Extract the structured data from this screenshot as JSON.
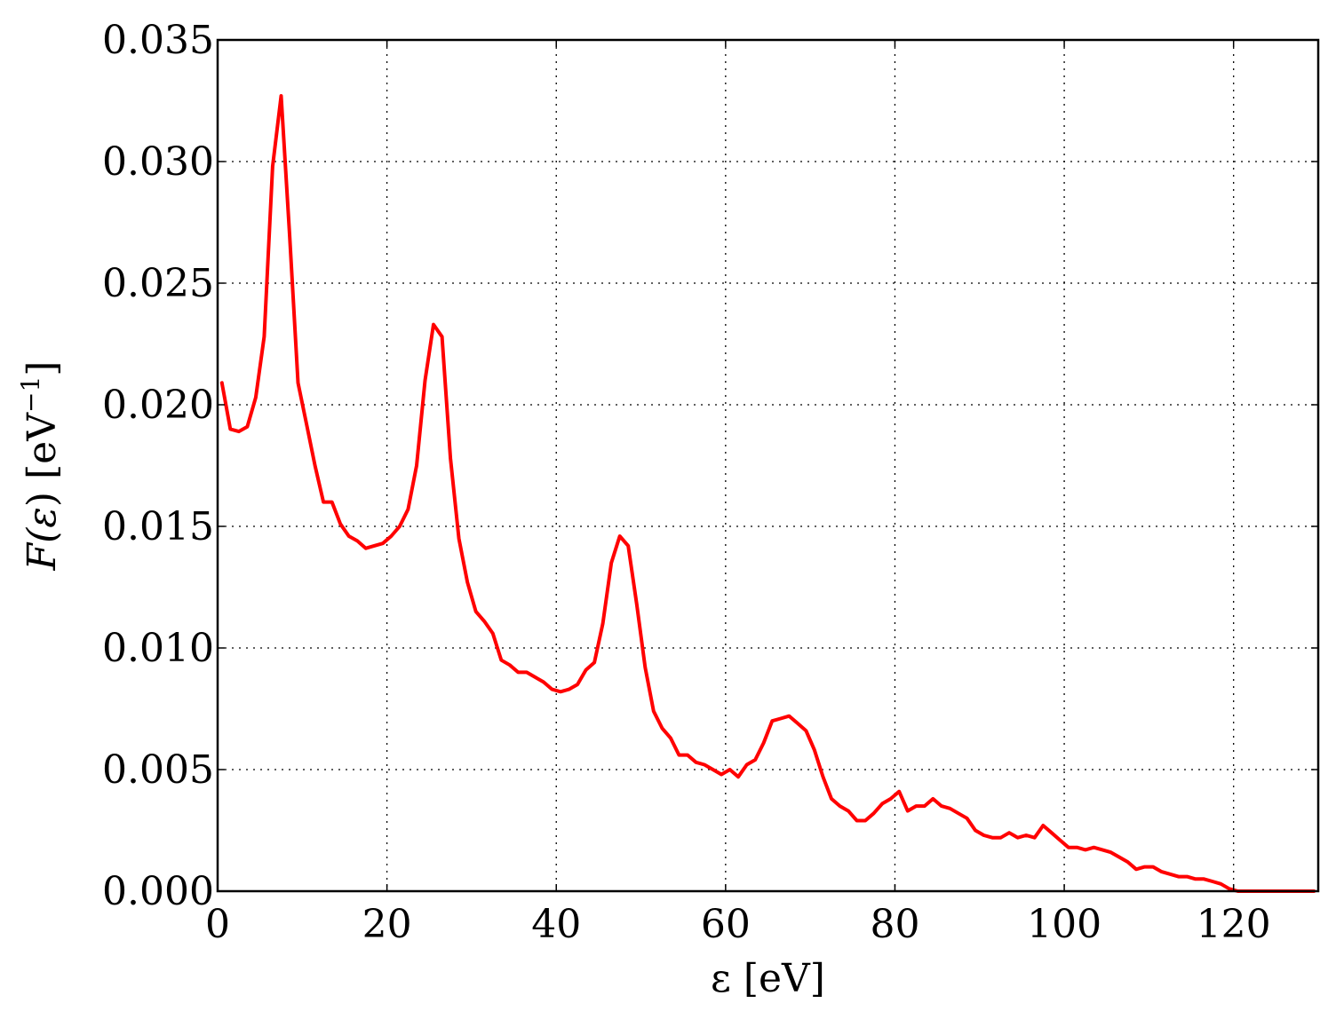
{
  "chart_data": {
    "type": "line",
    "xlabel": "ε [eV]",
    "ylabel_parts": {
      "prefix": "F(",
      "symbol": "ε",
      "suffix": ") [eV",
      "sup": "−1",
      "end": "]"
    },
    "xlim": [
      0,
      130
    ],
    "ylim": [
      0,
      0.035
    ],
    "xticks": [
      0,
      20,
      40,
      60,
      80,
      100,
      120
    ],
    "xtick_labels": [
      "0",
      "20",
      "40",
      "60",
      "80",
      "100",
      "120"
    ],
    "yticks": [
      0,
      0.005,
      0.01,
      0.015,
      0.02,
      0.025,
      0.03,
      0.035
    ],
    "ytick_labels": [
      "0.000",
      "0.005",
      "0.010",
      "0.015",
      "0.020",
      "0.025",
      "0.030",
      "0.035"
    ],
    "grid": true,
    "color": "#ff0000",
    "series": [
      {
        "x": [
          0.5,
          1.5,
          2.5,
          3.5,
          4.5,
          5.5,
          6.5,
          7.5,
          8.5,
          9.5,
          10.5,
          11.5,
          12.5,
          13.5,
          14.5,
          15.5,
          16.5,
          17.5,
          18.5,
          19.5,
          20.5,
          21.5,
          22.5,
          23.5,
          24.5,
          25.5,
          26.5,
          27.5,
          28.5,
          29.5,
          30.5,
          31.5,
          32.5,
          33.5,
          34.5,
          35.5,
          36.5,
          37.5,
          38.5,
          39.5,
          40.5,
          41.5,
          42.5,
          43.5,
          44.5,
          45.5,
          46.5,
          47.5,
          48.5,
          49.5,
          50.5,
          51.5,
          52.5,
          53.5,
          54.5,
          55.5,
          56.5,
          57.5,
          58.5,
          59.5,
          60.5,
          61.5,
          62.5,
          63.5,
          64.5,
          65.5,
          66.5,
          67.5,
          68.5,
          69.5,
          70.5,
          71.5,
          72.5,
          73.5,
          74.5,
          75.5,
          76.5,
          77.5,
          78.5,
          79.5,
          80.5,
          81.5,
          82.5,
          83.5,
          84.5,
          85.5,
          86.5,
          87.5,
          88.5,
          89.5,
          90.5,
          91.5,
          92.5,
          93.5,
          94.5,
          95.5,
          96.5,
          97.5,
          98.5,
          99.5,
          100.5,
          101.5,
          102.5,
          103.5,
          104.5,
          105.5,
          106.5,
          107.5,
          108.5,
          109.5,
          110.5,
          111.5,
          112.5,
          113.5,
          114.5,
          115.5,
          116.5,
          117.5,
          118.5,
          119.5,
          120.5,
          121.5,
          122.5,
          123.5,
          124.5,
          125.5,
          126.5,
          127.5,
          128.5,
          129.5
        ],
        "y": [
          0.0209,
          0.019,
          0.0189,
          0.0191,
          0.0203,
          0.0228,
          0.0298,
          0.0327,
          0.027,
          0.0209,
          0.0192,
          0.0175,
          0.016,
          0.016,
          0.0151,
          0.0146,
          0.0144,
          0.0141,
          0.0142,
          0.0143,
          0.0146,
          0.015,
          0.0157,
          0.0175,
          0.021,
          0.0233,
          0.0228,
          0.0178,
          0.0145,
          0.0127,
          0.0115,
          0.0111,
          0.0106,
          0.0095,
          0.0093,
          0.009,
          0.009,
          0.0088,
          0.0086,
          0.0083,
          0.0082,
          0.0083,
          0.0085,
          0.0091,
          0.0094,
          0.011,
          0.0135,
          0.0146,
          0.0142,
          0.0118,
          0.0092,
          0.0074,
          0.0067,
          0.0063,
          0.0056,
          0.0056,
          0.0053,
          0.0052,
          0.005,
          0.0048,
          0.005,
          0.0047,
          0.0052,
          0.0054,
          0.0061,
          0.007,
          0.0071,
          0.0072,
          0.0069,
          0.0066,
          0.0058,
          0.0047,
          0.0038,
          0.0035,
          0.0033,
          0.0029,
          0.0029,
          0.0032,
          0.0036,
          0.0038,
          0.0041,
          0.0033,
          0.0035,
          0.0035,
          0.0038,
          0.0035,
          0.0034,
          0.0032,
          0.003,
          0.0025,
          0.0023,
          0.0022,
          0.0022,
          0.0024,
          0.0022,
          0.0023,
          0.0022,
          0.0027,
          0.0024,
          0.0021,
          0.0018,
          0.0018,
          0.0017,
          0.0018,
          0.0017,
          0.0016,
          0.0014,
          0.0012,
          0.0009,
          0.001,
          0.001,
          0.0008,
          0.0007,
          0.0006,
          0.0006,
          0.0005,
          0.0005,
          0.0004,
          0.0003,
          0.0001,
          0.0,
          0.0,
          0.0,
          0.0,
          0.0,
          0.0,
          0.0,
          0.0,
          0.0,
          0.0
        ]
      }
    ]
  }
}
